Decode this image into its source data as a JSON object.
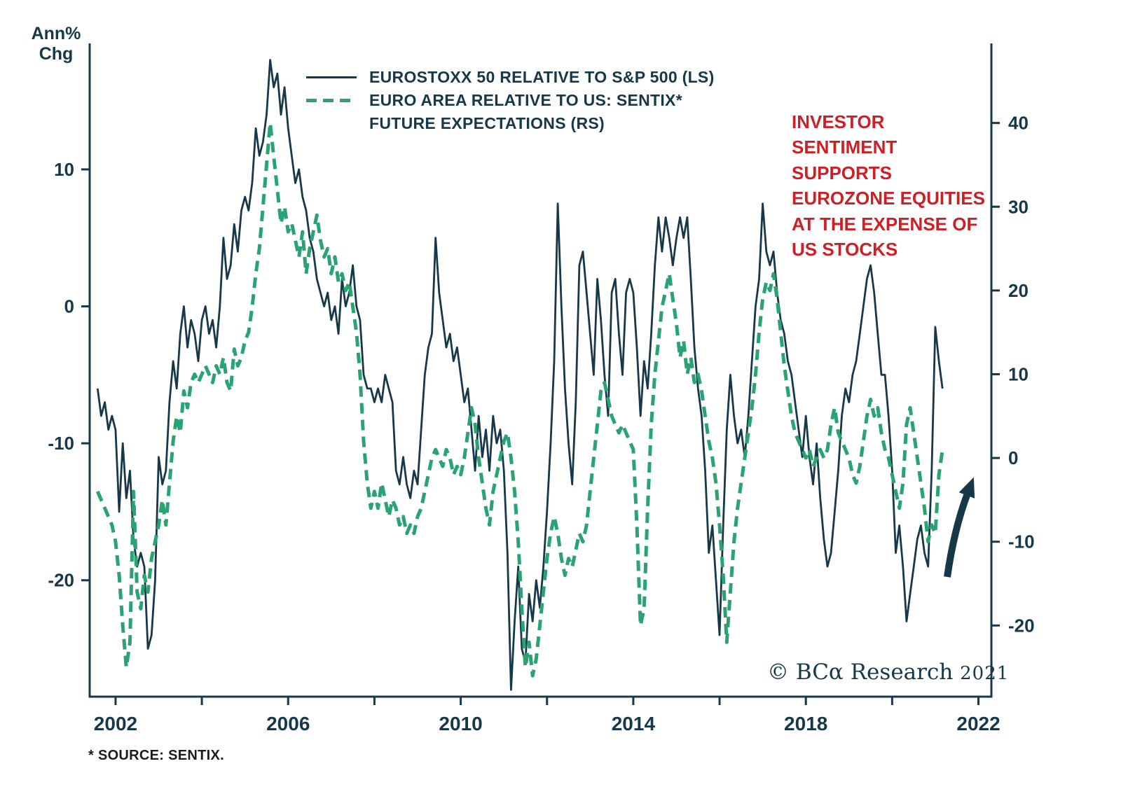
{
  "colors": {
    "navy": "#173849",
    "green": "#2aa373",
    "red": "#cd2026"
  },
  "axis_title": {
    "line1": "Ann%",
    "line2": "Chg"
  },
  "legend": {
    "series1": "EUROSTOXX 50 RELATIVE TO S&P 500 (LS)",
    "series2_line1": "EURO AREA RELATIVE TO US: SENTIX*",
    "series2_line2": "FUTURE EXPECTATIONS (RS)"
  },
  "annotation": {
    "text": "INVESTOR\nSENTIMENT\nSUPPORTS\nEUROZONE EQUITIES\nAT THE EXPENSE OF\nUS STOCKS",
    "color": "#cd2026"
  },
  "copyright": {
    "main": "© BCα Research ",
    "year": "2021"
  },
  "footnote": "* SOURCE: SENTIX.",
  "chart_data": {
    "type": "line",
    "title": "",
    "grid": false,
    "legend_position": "top-left-inside",
    "x_axis": {
      "range": [
        2001.4,
        2022.3
      ],
      "tick_values": [
        2002,
        2006,
        2010,
        2014,
        2018,
        2022
      ],
      "tick_labels": [
        "2002",
        "2006",
        "2010",
        "2014",
        "2018",
        "2022"
      ],
      "all_tick_values": [
        2002,
        2004,
        2006,
        2008,
        2010,
        2012,
        2014,
        2016,
        2018,
        2020,
        2022
      ]
    },
    "left_axis": {
      "title": "Ann% Chg",
      "range": [
        -28.5,
        19.2
      ],
      "tick_values": [
        10,
        0,
        -10,
        -20
      ]
    },
    "right_axis": {
      "title": "Sentix future expectations (relative, index pts)",
      "range": [
        -28.5,
        49.5
      ],
      "tick_values": [
        40,
        30,
        20,
        10,
        0,
        -10,
        -20
      ]
    },
    "arrow_annotation": {
      "direction": "up-right",
      "color": "#173849"
    },
    "series": [
      {
        "name": "EUROSTOXX 50 RELATIVE TO S&P 500 (LS)",
        "axis": "left",
        "style": "solid",
        "color": "#173849",
        "x_start": 2001.5833,
        "x_step": 0.083333,
        "values": [
          -6,
          -8,
          -7,
          -9,
          -8,
          -9,
          -15,
          -10,
          -14,
          -12,
          -17,
          -19,
          -18,
          -19,
          -25,
          -24,
          -20,
          -11,
          -13,
          -12,
          -7,
          -4,
          -6,
          -2,
          0,
          -3,
          -1,
          -2,
          -4,
          -1,
          0,
          -2,
          -1,
          -3,
          0,
          5,
          2,
          3,
          6,
          4,
          7,
          8,
          7,
          9,
          13,
          11,
          12,
          14,
          18,
          16,
          17,
          14,
          16,
          13,
          11,
          9,
          10,
          8,
          7,
          5,
          4,
          2,
          1,
          0,
          1,
          -1,
          0,
          -2,
          2,
          0,
          1,
          3,
          0,
          -1,
          -5,
          -6,
          -6,
          -7,
          -6,
          -7,
          -5,
          -6,
          -7,
          -12,
          -13,
          -11,
          -13,
          -14,
          -12,
          -13,
          -9,
          -5,
          -3,
          -2,
          5,
          1,
          -1,
          -3,
          -2,
          -4,
          -3,
          -5,
          -7,
          -6,
          -9,
          -12,
          -8,
          -11,
          -9,
          -12,
          -8,
          -10,
          -9,
          -12,
          -18,
          -28,
          -23,
          -19,
          -25,
          -26,
          -21,
          -23,
          -20,
          -22,
          -19,
          -15,
          -10,
          -4,
          7.5,
          0,
          -6,
          -10,
          -13,
          -7,
          3,
          4,
          1,
          -2,
          -5,
          2,
          -1,
          -5,
          -8,
          1,
          2,
          -2,
          -5,
          1,
          2,
          1,
          -3,
          -8,
          -4,
          -6,
          -2,
          3,
          6.5,
          4,
          6.5,
          5,
          3,
          5,
          6.5,
          5,
          6.5,
          2,
          -3,
          -6,
          -8,
          -12,
          -18,
          -16,
          -20,
          -24,
          -16,
          -9,
          -5,
          -8,
          -10,
          -9,
          -11,
          -8,
          -4,
          0,
          2,
          7.5,
          4,
          3,
          4,
          1,
          -1,
          -2,
          -4,
          -5,
          -7,
          -9,
          -11,
          -8,
          -11,
          -13,
          -10,
          -14,
          -17,
          -19,
          -18,
          -15,
          -12,
          -8,
          -6,
          -7,
          -5,
          -4,
          -2,
          0,
          2,
          3,
          1,
          -2,
          -5,
          -5,
          -8,
          -12,
          -18,
          -16,
          -19,
          -23,
          -21,
          -19,
          -17,
          -16,
          -18,
          -19,
          -12,
          -1.5,
          -4,
          -6
        ]
      },
      {
        "name": "EURO AREA RELATIVE TO US: SENTIX* FUTURE EXPECTATIONS (RS)",
        "axis": "right",
        "style": "dashed",
        "color": "#2aa373",
        "x_start": 2001.5833,
        "x_step": 0.083333,
        "values": [
          -4,
          -5,
          -6,
          -7,
          -8,
          -10,
          -14,
          -20,
          -25,
          -22,
          -4,
          -16,
          -18,
          -14,
          -16,
          -12,
          -10,
          -8,
          -5,
          -8,
          -3,
          2,
          5,
          3,
          8,
          6,
          9,
          10,
          9,
          10,
          11,
          10,
          9,
          11,
          10,
          12,
          9,
          8,
          13,
          11,
          12,
          14,
          15,
          18,
          22,
          25,
          30,
          35,
          40,
          36,
          32,
          28,
          30,
          27,
          28,
          26,
          24,
          27,
          22,
          25,
          27,
          29,
          26,
          24,
          25,
          22,
          24,
          21,
          22,
          20,
          21,
          18,
          15,
          10,
          2,
          -3,
          -6,
          -4,
          -6,
          -3,
          -5,
          -7,
          -5,
          -6,
          -8,
          -7,
          -9,
          -8,
          -9,
          -7,
          -6,
          -4,
          -2,
          0,
          1,
          0,
          -1,
          1,
          0,
          -2,
          -1,
          -2,
          0,
          3,
          6,
          4,
          0,
          -3,
          -6,
          -8,
          -4,
          -2,
          0,
          2,
          3,
          0,
          -4,
          -10,
          -18,
          -25,
          -22,
          -26,
          -24,
          -20,
          -16,
          -12,
          -9,
          -7,
          -9,
          -12,
          -14,
          -12,
          -13,
          -11,
          -9,
          -10,
          -8,
          -4,
          0,
          4,
          8,
          9,
          7,
          5,
          4,
          3,
          4,
          3,
          2,
          1,
          -8,
          -20,
          -18,
          -6,
          4,
          10,
          14,
          18,
          20,
          22,
          19,
          16,
          12,
          14,
          10,
          12,
          9,
          10,
          8,
          5,
          2,
          0,
          -3,
          -8,
          -14,
          -22,
          -16,
          -10,
          -6,
          -3,
          0,
          3,
          6,
          10,
          15,
          19,
          21,
          20,
          22,
          19,
          15,
          11,
          8,
          5,
          3,
          2,
          1,
          0,
          1,
          -1,
          0,
          1,
          0,
          1,
          4,
          6,
          3,
          2,
          1,
          0,
          -2,
          -3,
          -1,
          2,
          5,
          7,
          5,
          6,
          3,
          1,
          0,
          -2,
          -4,
          -6,
          -3,
          4,
          6,
          3,
          0,
          -3,
          -6,
          -10,
          -8,
          -9,
          -2,
          1
        ]
      }
    ]
  }
}
